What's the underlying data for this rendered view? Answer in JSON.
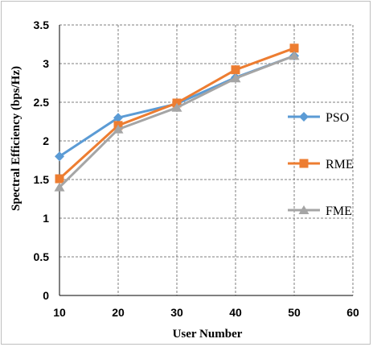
{
  "chart_data": {
    "type": "line",
    "title": "",
    "xlabel": "User Number",
    "ylabel": "Spectral Efficiency (bps/Hz)",
    "xlim": [
      10,
      60
    ],
    "ylim": [
      0,
      3.5
    ],
    "x_ticks": [
      "10",
      "20",
      "30",
      "40",
      "50",
      "60"
    ],
    "y_ticks": [
      "0",
      "0.5",
      "1",
      "1.5",
      "2",
      "2.5",
      "3",
      "3.5"
    ],
    "grid": true,
    "legend_position": "right",
    "x": [
      10,
      20,
      30,
      40,
      50
    ],
    "series": [
      {
        "name": "PSO",
        "values": [
          1.8,
          2.3,
          2.48,
          2.82,
          3.1
        ],
        "color": "#5b9bd5",
        "marker": "diamond"
      },
      {
        "name": "RME",
        "values": [
          1.51,
          2.2,
          2.49,
          2.92,
          3.2
        ],
        "color": "#ed7d31",
        "marker": "square"
      },
      {
        "name": "FME",
        "values": [
          1.4,
          2.15,
          2.43,
          2.81,
          3.1
        ],
        "color": "#a5a5a5",
        "marker": "triangle"
      }
    ]
  }
}
